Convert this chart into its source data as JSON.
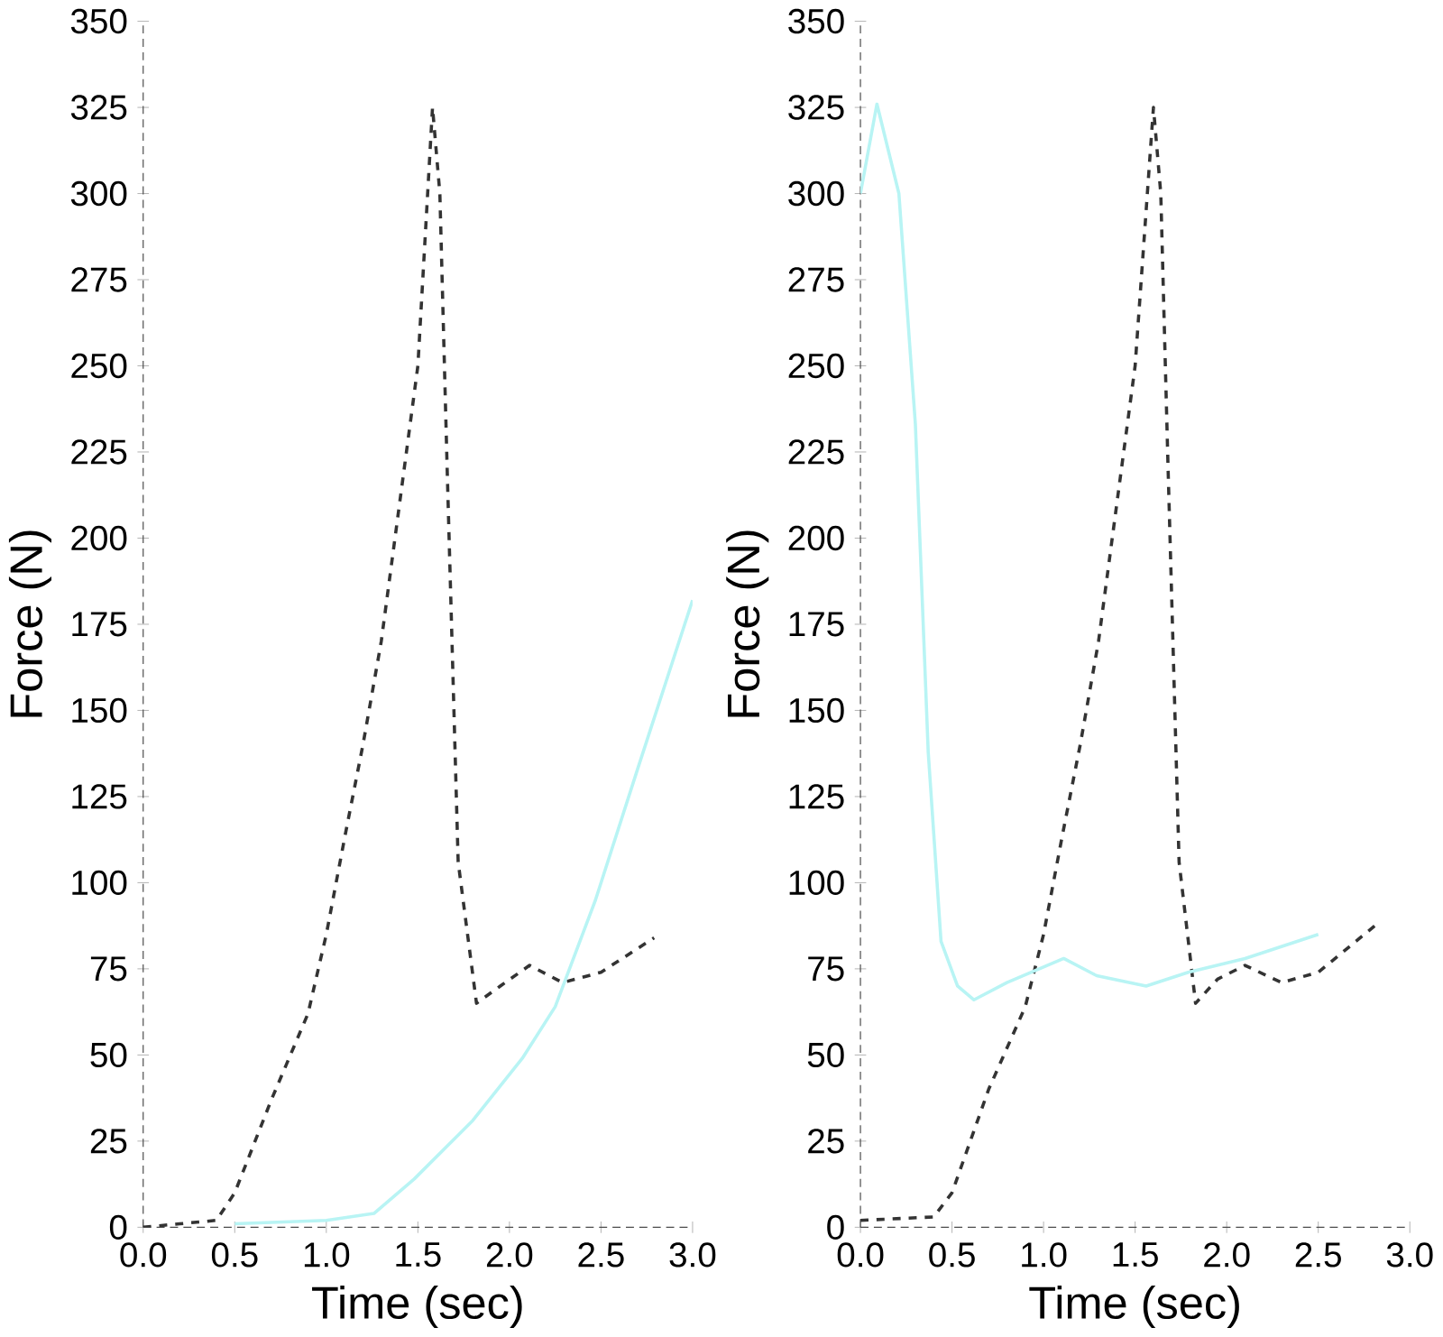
{
  "chart_data": [
    {
      "type": "line",
      "ylabel": "Force (N)",
      "xlabel": "Time (sec)",
      "xlim": [
        0,
        3
      ],
      "ylim": [
        0,
        350
      ],
      "xticks": [
        {
          "value": 0,
          "label": "0.0"
        },
        {
          "value": 0.5,
          "label": "0.5"
        },
        {
          "value": 1,
          "label": "1.0"
        },
        {
          "value": 1.5,
          "label": "1.5"
        },
        {
          "value": 2,
          "label": "2.0"
        },
        {
          "value": 2.5,
          "label": "2.5"
        },
        {
          "value": 3,
          "label": "3.0"
        }
      ],
      "yticks": [
        0,
        25,
        50,
        75,
        100,
        125,
        150,
        175,
        200,
        225,
        250,
        275,
        300,
        325,
        350
      ],
      "grid": false,
      "series": [
        {
          "color": "#333333",
          "line_style": "dashed",
          "x": [
            0,
            0.2,
            0.4,
            0.5,
            0.7,
            0.9,
            1.0,
            1.1,
            1.2,
            1.3,
            1.4,
            1.5,
            1.58,
            1.62,
            1.66,
            1.72,
            1.82,
            1.95,
            2.11,
            2.29,
            2.5,
            2.79
          ],
          "values": [
            0,
            1,
            2,
            10,
            37,
            62,
            85,
            113,
            140,
            170,
            210,
            250,
            325,
            300,
            220,
            106,
            65,
            70,
            76,
            71,
            74,
            84
          ]
        },
        {
          "color": "#b8f4f4",
          "line_style": "solid",
          "x": [
            0.5,
            1.0,
            1.26,
            1.48,
            1.8,
            2.07,
            2.25,
            2.47,
            2.7,
            3.0
          ],
          "values": [
            1,
            2,
            4,
            14,
            31,
            49,
            64,
            95,
            133,
            182
          ]
        }
      ]
    },
    {
      "type": "line",
      "ylabel": "Force (N)",
      "xlabel": "Time (sec)",
      "xlim": [
        0,
        3
      ],
      "ylim": [
        0,
        350
      ],
      "xticks": [
        {
          "value": 0,
          "label": "0.0"
        },
        {
          "value": 0.5,
          "label": "0.5"
        },
        {
          "value": 1,
          "label": "1.0"
        },
        {
          "value": 1.5,
          "label": "1.5"
        },
        {
          "value": 2,
          "label": "2.0"
        },
        {
          "value": 2.5,
          "label": "2.5"
        },
        {
          "value": 3,
          "label": "3.0"
        }
      ],
      "yticks": [
        0,
        25,
        50,
        75,
        100,
        125,
        150,
        175,
        200,
        225,
        250,
        275,
        300,
        325,
        350
      ],
      "grid": false,
      "series": [
        {
          "color": "#333333",
          "line_style": "dashed",
          "x": [
            0,
            0.4,
            0.5,
            0.7,
            0.9,
            1.0,
            1.1,
            1.2,
            1.3,
            1.4,
            1.5,
            1.6,
            1.64,
            1.68,
            1.74,
            1.83,
            1.95,
            2.1,
            2.3,
            2.5,
            2.82
          ],
          "values": [
            2,
            3,
            10,
            40,
            64,
            85,
            113,
            140,
            170,
            210,
            250,
            325,
            300,
            220,
            106,
            65,
            72,
            76,
            71,
            74,
            88
          ]
        },
        {
          "color": "#b8f4f4",
          "line_style": "solid",
          "x": [
            0,
            0.09,
            0.21,
            0.3,
            0.37,
            0.44,
            0.53,
            0.62,
            0.8,
            1.11,
            1.29,
            1.56,
            1.79,
            2.1,
            2.5
          ],
          "values": [
            300,
            326,
            300,
            233,
            138,
            83,
            70,
            66,
            71,
            78,
            73,
            70,
            74,
            78,
            85
          ]
        }
      ]
    }
  ]
}
